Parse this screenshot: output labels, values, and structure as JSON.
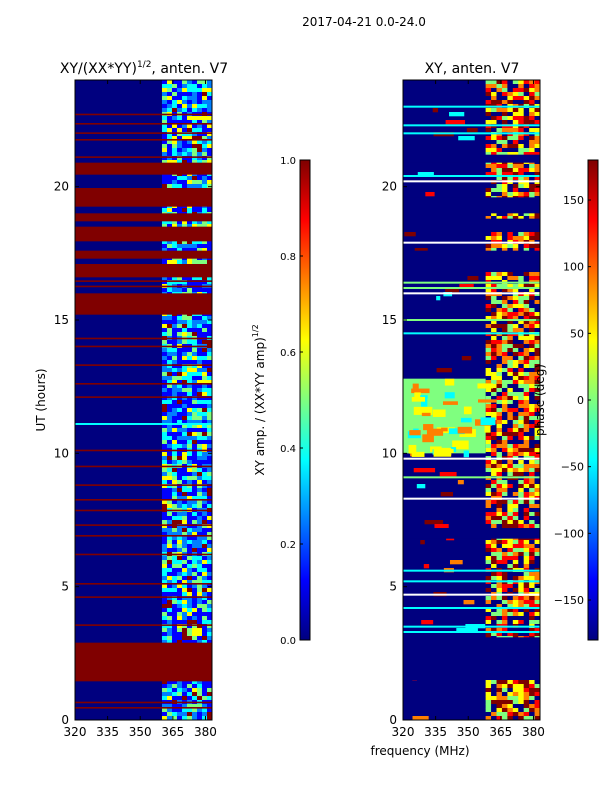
{
  "suptitle": "2017-04-21 0.0-24.0",
  "xlabel": "frequency (MHz)",
  "colors": {
    "stripe_red": "#800000",
    "jet": [
      "#00007f",
      "#0000ff",
      "#007fff",
      "#00ffff",
      "#7fff7f",
      "#ffff00",
      "#ff7f00",
      "#ff0000",
      "#7f0000"
    ]
  },
  "chart_data": [
    {
      "type": "heatmap",
      "title": "XY/(XX*YY)",
      "title_exponent": "1/2",
      "title_suffix": ", anten. V7",
      "xlabel": "frequency (MHz)",
      "ylabel": "UT (hours)",
      "xlim": [
        320,
        383
      ],
      "ylim": [
        0,
        24
      ],
      "xticks": [
        320,
        335,
        350,
        365,
        380
      ],
      "yticks": [
        0,
        5,
        10,
        15,
        20
      ],
      "colorbar": {
        "label": "XY amp. / (XX*YY amp)",
        "label_exponent": "1/2",
        "range": [
          0.0,
          1.0
        ],
        "ticks": [
          "0.0",
          "0.2",
          "0.4",
          "0.6",
          "0.8",
          "1.0"
        ]
      },
      "active_band_mhz": [
        360,
        383
      ],
      "saturated_hour_ranges": [
        [
          1.45,
          2.9
        ],
        [
          15.2,
          16.0
        ],
        [
          16.6,
          17.1
        ],
        [
          17.3,
          17.6
        ],
        [
          17.95,
          18.5
        ],
        [
          18.7,
          19.0
        ],
        [
          19.25,
          19.95
        ],
        [
          20.45,
          20.9
        ]
      ],
      "flag_lines_hours": [
        0.45,
        0.65,
        3.55,
        4.6,
        5.1,
        6.2,
        6.9,
        7.3,
        7.85,
        8.25,
        8.8,
        9.5,
        10.1,
        12.1,
        12.6,
        13.3,
        14.0,
        14.3,
        15.4,
        16.25,
        16.45,
        21.1,
        21.75,
        22.0,
        22.35,
        22.7
      ],
      "bright_line_hours": [
        11.1
      ]
    },
    {
      "type": "heatmap",
      "title": "XY, anten. V7",
      "xlabel": "frequency (MHz)",
      "ylabel": "",
      "xlim": [
        320,
        383
      ],
      "ylim": [
        0,
        24
      ],
      "xticks": [
        320,
        335,
        350,
        365,
        380
      ],
      "yticks": [
        0,
        5,
        10,
        15,
        20
      ],
      "colorbar": {
        "label": "phase (deg)",
        "range": [
          -180,
          180
        ],
        "ticks": [
          "−150",
          "−100",
          "−50",
          "0",
          "50",
          "100",
          "150"
        ],
        "tick_values": [
          -150,
          -100,
          -50,
          0,
          50,
          100,
          150
        ]
      },
      "active_band_mhz": [
        358,
        383
      ],
      "green_band_hours": [
        [
          10.0,
          12.8
        ]
      ],
      "dark_hour_ranges": [
        [
          1.5,
          3.1
        ],
        [
          6.8,
          7.2
        ],
        [
          16.8,
          17.6
        ],
        [
          18.3,
          18.8
        ],
        [
          19.0,
          19.6
        ],
        [
          20.9,
          21.2
        ]
      ],
      "flag_lines_hours": [
        3.3,
        3.5,
        4.2,
        4.7,
        5.2,
        5.6,
        8.3,
        9.1,
        9.8,
        14.5,
        15.0,
        16.0,
        16.2,
        16.4,
        17.9,
        20.2,
        20.4,
        22.0,
        22.3,
        23.0
      ]
    }
  ]
}
